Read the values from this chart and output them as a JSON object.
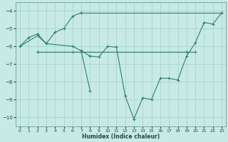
{
  "xlabel": "Humidex (Indice chaleur)",
  "xlim": [
    -0.5,
    23.5
  ],
  "ylim": [
    -10.5,
    -3.5
  ],
  "yticks": [
    -10,
    -9,
    -8,
    -7,
    -6,
    -5,
    -4
  ],
  "xticks": [
    0,
    1,
    2,
    3,
    4,
    5,
    6,
    7,
    8,
    9,
    10,
    11,
    12,
    13,
    14,
    15,
    16,
    17,
    18,
    19,
    20,
    21,
    22,
    23
  ],
  "bg_color": "#c8eae4",
  "grid_color": "#a8d4ce",
  "line_color": "#2e7d72",
  "lines": [
    {
      "x": [
        0,
        1,
        2,
        3,
        4,
        5,
        6,
        7
      ],
      "y": [
        -6.0,
        -5.5,
        -5.3,
        -5.85,
        -5.2,
        -5.0,
        -4.3,
        -4.1
      ]
    },
    {
      "x": [
        7,
        23
      ],
      "y": [
        -4.1,
        -4.1
      ]
    },
    {
      "x": [
        0,
        2,
        3,
        6,
        7,
        8,
        9,
        10,
        11,
        12,
        13,
        14,
        15,
        16,
        17,
        18,
        19,
        20,
        21,
        22,
        23
      ],
      "y": [
        -6.0,
        -5.4,
        -5.85,
        -6.0,
        -6.25,
        -6.55,
        -6.6,
        -6.0,
        -6.05,
        -8.8,
        -10.1,
        -8.9,
        -9.0,
        -7.8,
        -7.8,
        -7.9,
        -6.55,
        -5.8,
        -4.65,
        -4.75,
        -4.1
      ]
    },
    {
      "x": [
        2,
        6,
        7,
        19,
        20
      ],
      "y": [
        -6.3,
        -6.3,
        -6.3,
        -6.3,
        -6.3
      ]
    },
    {
      "x": [
        2,
        19
      ],
      "y": [
        -6.3,
        -6.3
      ]
    },
    {
      "x": [
        7,
        8
      ],
      "y": [
        -6.3,
        -8.5
      ]
    }
  ]
}
